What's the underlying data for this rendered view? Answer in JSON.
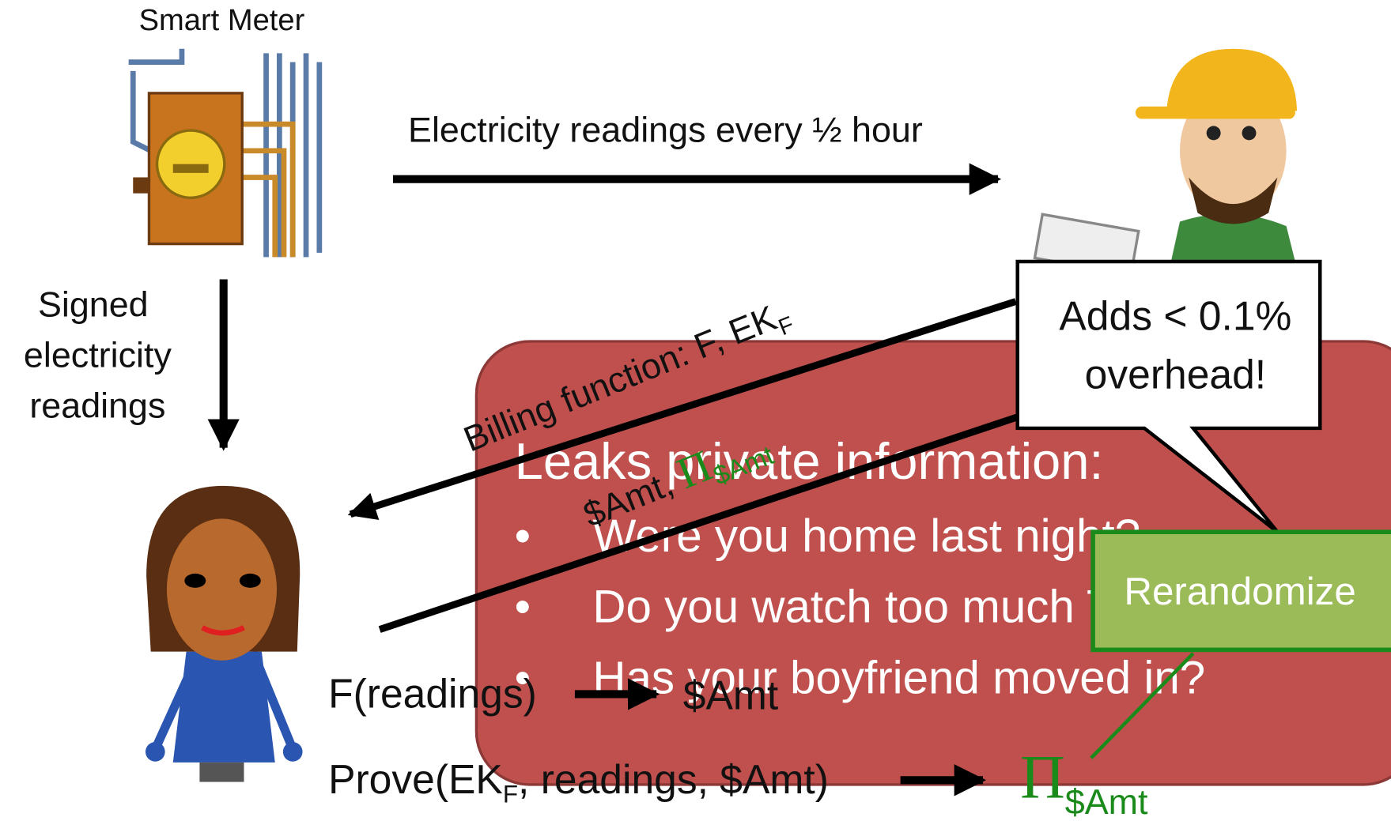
{
  "meter": {
    "label": "Smart Meter"
  },
  "readings_arrow": {
    "label": "Electricity readings every ½ hour"
  },
  "signed": {
    "lines": [
      "Signed",
      "electricity",
      "readings"
    ]
  },
  "leak_box": {
    "title": "Leaks private information:",
    "bullets": [
      "Were you home last night?",
      "Do you watch too much TV?",
      "Has your boyfriend moved in?"
    ]
  },
  "billing": {
    "text": "Billing function: F, EK",
    "sub": "F"
  },
  "amount_back": {
    "text": "$Amt, ",
    "symbol": "Π",
    "sub": "$Amt"
  },
  "callout": {
    "lines": [
      "Adds < 0.1%",
      "overhead!"
    ]
  },
  "rerandomize": {
    "label": "Rerandomize"
  },
  "compute": {
    "left": "F(readings)",
    "right": "$Amt"
  },
  "prove": {
    "pre": "Prove(EK",
    "sub": "F",
    "post": ", readings, $Amt)",
    "symbol": "Π",
    "symbol_sub": "$Amt"
  }
}
